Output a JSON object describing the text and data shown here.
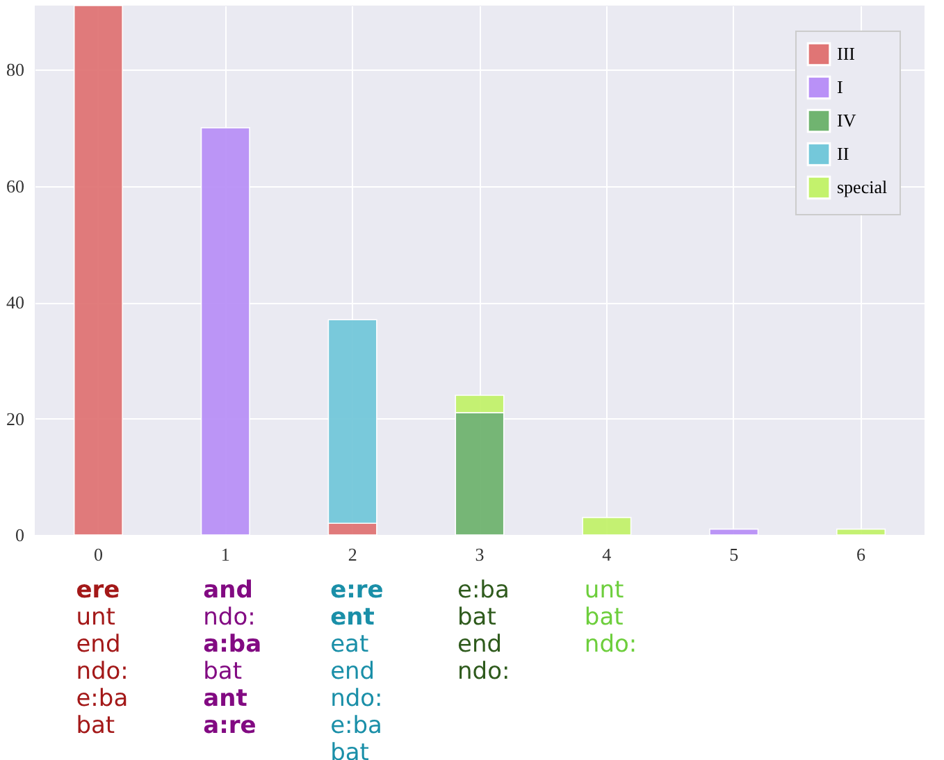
{
  "chart_data": {
    "type": "bar",
    "stacked": true,
    "categories": [
      "0",
      "1",
      "2",
      "3",
      "4",
      "5",
      "6"
    ],
    "series": [
      {
        "name": "III",
        "color": "#e07575",
        "values": [
          91,
          null,
          2,
          null,
          null,
          null,
          null
        ]
      },
      {
        "name": "I",
        "color": "#b991f7",
        "values": [
          null,
          70,
          null,
          null,
          null,
          1,
          null
        ]
      },
      {
        "name": "IV",
        "color": "#70b470",
        "values": [
          null,
          null,
          null,
          21,
          null,
          null,
          null
        ]
      },
      {
        "name": "II",
        "color": "#74c8da",
        "values": [
          null,
          null,
          35,
          null,
          null,
          null,
          null
        ]
      },
      {
        "name": "special",
        "color": "#c3f26c",
        "values": [
          null,
          null,
          null,
          3,
          3,
          null,
          1
        ]
      }
    ],
    "ylim": [
      0,
      91
    ],
    "yticks": [
      0,
      20,
      40,
      60,
      80
    ],
    "grid": true,
    "legend": "top right",
    "annotations": [
      "ere",
      "unt",
      "end",
      "ndo:",
      "e:ba",
      "bat",
      "and",
      "ndo:",
      "a:ba",
      "bat",
      "ant",
      "a:re",
      "e:re",
      "ent",
      "eat",
      "end",
      "ndo:",
      "e:ba",
      "bat",
      "e:ba",
      "bat",
      "end",
      "ndo:",
      "unt",
      "bat",
      "ndo:"
    ]
  }
}
